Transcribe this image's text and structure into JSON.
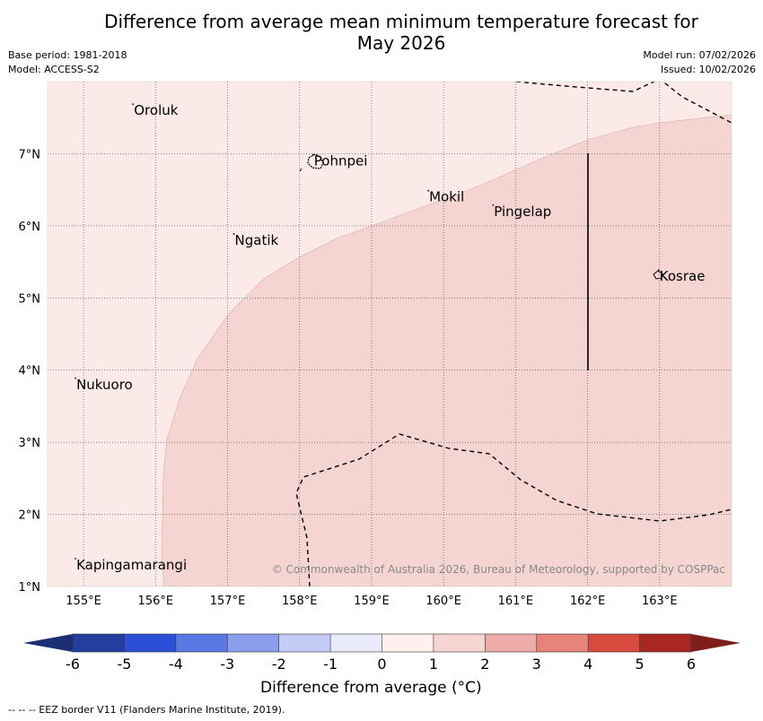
{
  "title": {
    "line1": "Difference from average mean minimum temperature forecast for",
    "line2": "May 2026"
  },
  "meta": {
    "base_period": "Base period: 1981-2018",
    "model": "Model: ACCESS-S2",
    "model_run": "Model run: 07/02/2026",
    "issued": "Issued: 10/02/2026"
  },
  "map": {
    "lon_range": [
      154.5,
      164.0
    ],
    "lat_range": [
      1.0,
      8.0
    ],
    "lon_ticks": [
      "155°E",
      "156°E",
      "157°E",
      "158°E",
      "159°E",
      "160°E",
      "161°E",
      "162°E",
      "163°E"
    ],
    "lat_ticks": [
      "7°N",
      "6°N",
      "5°N",
      "4°N",
      "3°N",
      "2°N",
      "1°N"
    ],
    "islands": [
      {
        "name": "Oroluk",
        "lon": 155.7,
        "lat": 7.6
      },
      {
        "name": "Pohnpei",
        "lon": 158.2,
        "lat": 6.9
      },
      {
        "name": "Mokil",
        "lon": 159.8,
        "lat": 6.4
      },
      {
        "name": "Pingelap",
        "lon": 160.7,
        "lat": 6.2
      },
      {
        "name": "Ngatik",
        "lon": 157.1,
        "lat": 5.8
      },
      {
        "name": "Kosrae",
        "lon": 163.0,
        "lat": 5.3
      },
      {
        "name": "Nukuoro",
        "lon": 154.9,
        "lat": 3.8
      },
      {
        "name": "Kapingamarangi",
        "lon": 154.9,
        "lat": 1.3
      }
    ],
    "copyright": "© Commonwealth of Australia 2026, Bureau of Meteorology, supported by COSPPac",
    "zone_colors": {
      "outer": "#fbeae8",
      "inner": "#f5d5d2"
    }
  },
  "colorbar": {
    "ticks": [
      "-6",
      "-5",
      "-4",
      "-3",
      "-2",
      "-1",
      "0",
      "1",
      "2",
      "3",
      "4",
      "5",
      "6"
    ],
    "colors": [
      "#233e9d",
      "#2b4fd6",
      "#5a78e4",
      "#8a9eec",
      "#c4cbf5",
      "#e9ebfb",
      "#fdf0ee",
      "#f6d5d2",
      "#eeaca8",
      "#e6837b",
      "#d94a3e",
      "#a82722"
    ],
    "under_color": "#1c2f75",
    "over_color": "#7e1f1c",
    "label": "Difference from average (°C)"
  },
  "footnote": "--  --  -- EEZ border V11 (Flanders Marine Institute, 2019)."
}
